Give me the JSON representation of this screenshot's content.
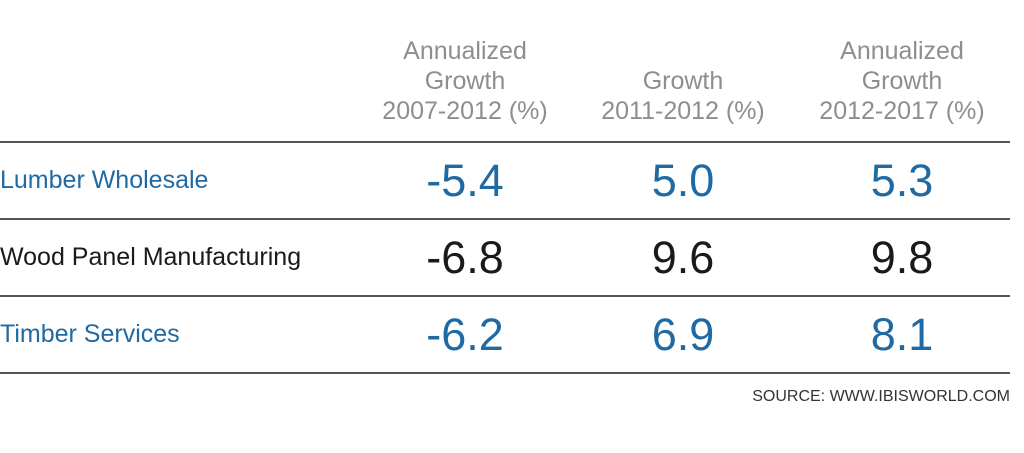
{
  "chart_data": {
    "type": "table",
    "columns": [
      {
        "line1": "Annualized",
        "line2": "Growth",
        "line3": "2007-2012 (%)"
      },
      {
        "line1": "",
        "line2": "Growth",
        "line3": "2011-2012 (%)"
      },
      {
        "line1": "Annualized",
        "line2": "Growth",
        "line3": "2012-2017 (%)"
      }
    ],
    "rows": [
      {
        "label": "Lumber Wholesale",
        "values": [
          "-5.4",
          "5.0",
          "5.3"
        ],
        "color": "#1f6aa3"
      },
      {
        "label": "Wood Panel Manufacturing",
        "values": [
          "-6.8",
          "9.6",
          "9.8"
        ],
        "color": "#1a1a1a"
      },
      {
        "label": "Timber Services",
        "values": [
          "-6.2",
          "6.9",
          "8.1"
        ],
        "color": "#1f6aa3"
      }
    ],
    "source": "SOURCE: WWW.IBISWORLD.COM"
  }
}
